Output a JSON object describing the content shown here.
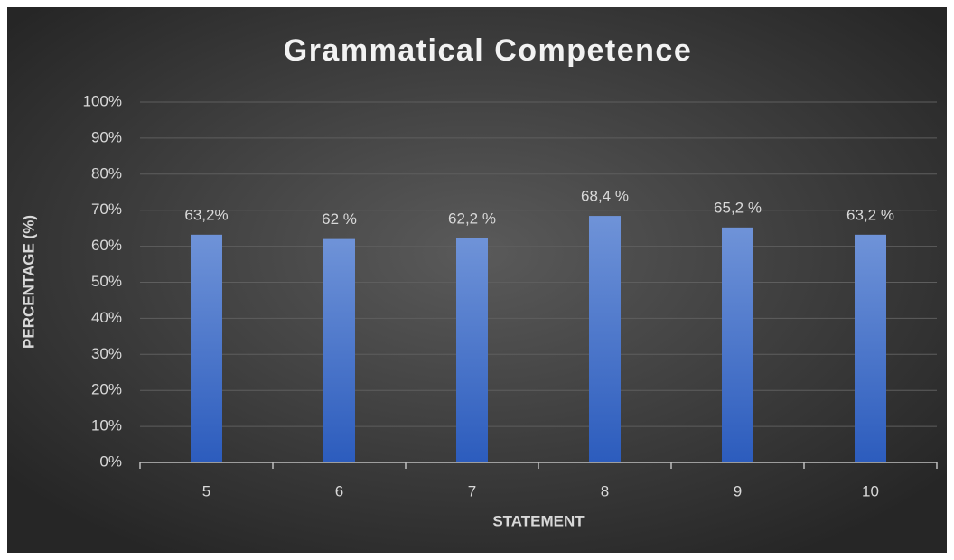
{
  "chart_data": {
    "type": "bar",
    "title": "Grammatical Competence",
    "x_label": "STATEMENT",
    "y_label": "PERCENTAGE (%)",
    "categories": [
      "5",
      "6",
      "7",
      "8",
      "9",
      "10"
    ],
    "values": [
      63.2,
      62,
      62.2,
      68.4,
      65.2,
      63.2
    ],
    "value_labels": [
      "63,2%",
      "62 %",
      "62,2 %",
      "68,4 %",
      "65,2 %",
      "63,2 %"
    ],
    "color": "#4472c4",
    "ylim": [
      0,
      100
    ],
    "yticks": [
      {
        "value": 0,
        "label": "0%"
      },
      {
        "value": 10,
        "label": "10%"
      },
      {
        "value": 20,
        "label": "20%"
      },
      {
        "value": 30,
        "label": "30%"
      },
      {
        "value": 40,
        "label": "40%"
      },
      {
        "value": 50,
        "label": "50%"
      },
      {
        "value": 60,
        "label": "60%"
      },
      {
        "value": 70,
        "label": "70%"
      },
      {
        "value": 80,
        "label": "80%"
      },
      {
        "value": 90,
        "label": "90%"
      },
      {
        "value": 100,
        "label": "100%"
      }
    ],
    "grid": true
  }
}
